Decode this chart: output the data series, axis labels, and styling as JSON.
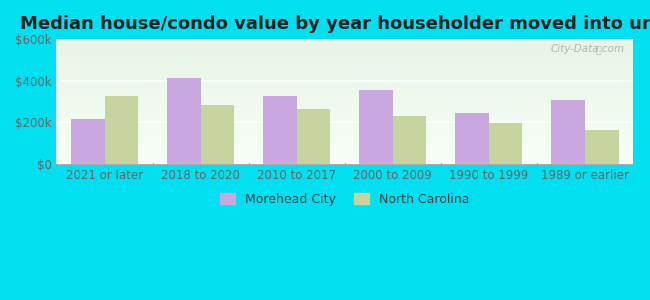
{
  "title": "Median house/condo value by year householder moved into unit",
  "categories": [
    "2021 or later",
    "2018 to 2020",
    "2010 to 2017",
    "2000 to 2009",
    "1990 to 1999",
    "1989 or earlier"
  ],
  "morehead_city": [
    215000,
    410000,
    325000,
    355000,
    245000,
    305000
  ],
  "north_carolina": [
    325000,
    285000,
    265000,
    230000,
    195000,
    165000
  ],
  "morehead_color": "#c9a8e0",
  "nc_color": "#c8d4a0",
  "ylim": [
    0,
    600000
  ],
  "yticks": [
    0,
    200000,
    400000,
    600000
  ],
  "ytick_labels": [
    "$0",
    "$200k",
    "$400k",
    "$600k"
  ],
  "legend_morehead": "Morehead City",
  "legend_nc": "North Carolina",
  "outer_bg": "#00e0f0",
  "bar_width": 0.35,
  "title_fontsize": 13,
  "axis_fontsize": 8.5,
  "legend_fontsize": 9,
  "watermark_text": "City-Data.com"
}
